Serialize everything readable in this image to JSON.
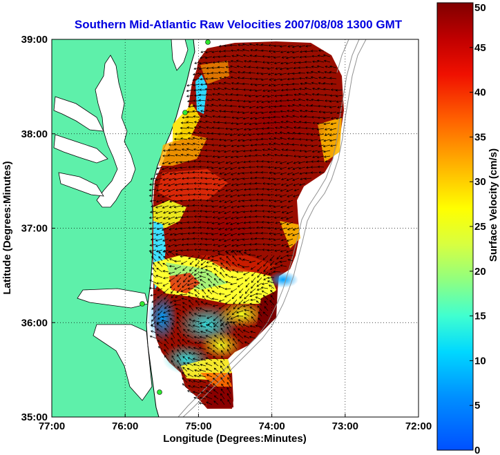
{
  "title": "Southern Mid-Atlantic Raw Velocities 2007/08/08 1300 GMT",
  "title_color": "#0000e0",
  "map": {
    "xlabel": "Longitude (Degrees:Minutes)",
    "ylabel": "Latitude (Degrees:Minutes)",
    "lon_range": [
      -77,
      -72
    ],
    "lat_range": [
      35,
      39
    ],
    "x_ticks": [
      {
        "value": -77,
        "label": "77:00"
      },
      {
        "value": -76,
        "label": "76:00"
      },
      {
        "value": -75,
        "label": "75:00"
      },
      {
        "value": -74,
        "label": "74:00"
      },
      {
        "value": -73,
        "label": "73:00"
      },
      {
        "value": -72,
        "label": "72:00"
      }
    ],
    "y_ticks": [
      {
        "value": 35,
        "label": "35:00"
      },
      {
        "value": 36,
        "label": "36:00"
      },
      {
        "value": 37,
        "label": "37:00"
      },
      {
        "value": 38,
        "label": "38:00"
      },
      {
        "value": 39,
        "label": "39:00"
      }
    ],
    "grid": "dotted",
    "land_color": "#5ef0aa",
    "water_color": "#ffffff",
    "station_color": "#2ee830"
  },
  "colorbar": {
    "label": "Surface Velocity (cm/s)",
    "min": 0,
    "max": 50,
    "ticks": [
      {
        "value": 0,
        "label": "0"
      },
      {
        "value": 5,
        "label": "5"
      },
      {
        "value": 10,
        "label": "10"
      },
      {
        "value": 15,
        "label": "15"
      },
      {
        "value": 20,
        "label": "20"
      },
      {
        "value": 25,
        "label": "25"
      },
      {
        "value": 30,
        "label": "30"
      },
      {
        "value": 35,
        "label": "35"
      },
      {
        "value": 40,
        "label": "40"
      },
      {
        "value": 45,
        "label": "45"
      },
      {
        "value": 50,
        "label": "50"
      }
    ]
  }
}
